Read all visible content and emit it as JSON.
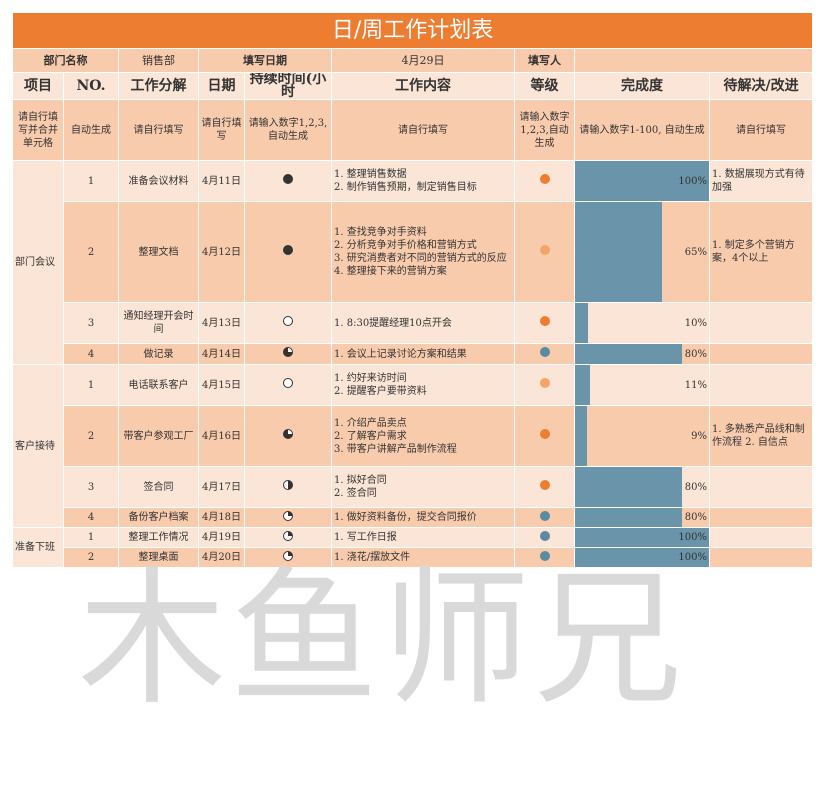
{
  "title": "日/周工作计划表",
  "meta": {
    "dept_label": "部门名称",
    "dept_value": "销售部",
    "date_label": "填写日期",
    "date_value": "4月29日",
    "filler_label": "填写人",
    "filler_value": ""
  },
  "headers": [
    "项目",
    "NO.",
    "工作分解",
    "日期",
    "持续时间(小时",
    "工作内容",
    "等级",
    "完成度",
    "待解决/改进"
  ],
  "instructions": [
    "请自行填写并合并单元格",
    "自动生成",
    "请自行填写",
    "请自行填写",
    "请输入数字1,2,3, 自动生成",
    "请自行填写",
    "请输入数字1,2,3,自动生成",
    "请输入数字1-100, 自动生成",
    "请自行填写"
  ],
  "sections": [
    "部门会议",
    "客户接待",
    "准备下班"
  ],
  "rows": [
    {
      "no": "1",
      "task": "准备会议材料",
      "date": "4月11日",
      "duration": "full",
      "content": [
        "1. 整理销售数据",
        "2. 制作销售预期，制定销售目标"
      ],
      "grade": "orange",
      "progress": 100,
      "pct": "100%",
      "todo": "1. 数据展现方式有待加强"
    },
    {
      "no": "2",
      "task": "整理文档",
      "date": "4月12日",
      "duration": "full",
      "content": [
        "1. 查找竞争对手资料",
        "2. 分析竞争对手价格和营销方式",
        "3. 研究消费者对不同的营销方式的反应",
        "4. 整理接下来的营销方案"
      ],
      "grade": "orange-light",
      "progress": 65,
      "pct": "65%",
      "todo": "1. 制定多个营销方案，4个以上"
    },
    {
      "no": "3",
      "task": "通知经理开会时间",
      "date": "4月13日",
      "duration": "empty",
      "content": [
        "1. 8:30提醒经理10点开会"
      ],
      "grade": "orange",
      "progress": 10,
      "pct": "10%",
      "todo": ""
    },
    {
      "no": "4",
      "task": "做记录",
      "date": "4月14日",
      "duration": "three-quarter",
      "content": [
        "1. 会议上记录讨论方案和结果"
      ],
      "grade": "blue",
      "progress": 80,
      "pct": "80%",
      "todo": ""
    },
    {
      "no": "1",
      "task": "电话联系客户",
      "date": "4月15日",
      "duration": "empty",
      "content": [
        "1. 约好来访时间",
        "2. 提醒客户要带资料"
      ],
      "grade": "orange-light",
      "progress": 11,
      "pct": "11%",
      "todo": ""
    },
    {
      "no": "2",
      "task": "带客户参观工厂",
      "date": "4月16日",
      "duration": "three-quarter",
      "content": [
        "1. 介绍产品卖点",
        "2. 了解客户需求",
        "3. 带客户讲解产品制作流程"
      ],
      "grade": "orange",
      "progress": 9,
      "pct": "9%",
      "todo": "1. 多熟悉产品线和制作流程 2. 自信点"
    },
    {
      "no": "3",
      "task": "签合同",
      "date": "4月17日",
      "duration": "half",
      "content": [
        "1. 拟好合同",
        "2. 签合同"
      ],
      "grade": "orange",
      "progress": 80,
      "pct": "80%",
      "todo": ""
    },
    {
      "no": "4",
      "task": "备份客户档案",
      "date": "4月18日",
      "duration": "quarter",
      "content": [
        "1. 做好资料备份，提交合同报价"
      ],
      "grade": "blue",
      "progress": 80,
      "pct": "80%",
      "todo": ""
    },
    {
      "no": "1",
      "task": "整理工作情况",
      "date": "4月19日",
      "duration": "quarter",
      "content": [
        "1. 写工作日报"
      ],
      "grade": "blue",
      "progress": 100,
      "pct": "100%",
      "todo": ""
    },
    {
      "no": "2",
      "task": "整理桌面",
      "date": "4月20日",
      "duration": "quarter",
      "content": [
        "1. 浇花/摆放文件"
      ],
      "grade": "blue",
      "progress": 100,
      "pct": "100%",
      "todo": ""
    }
  ],
  "colors": {
    "accent": "#ed7d31",
    "dark_row": "#f8cbad",
    "light_row": "#fbe5d6",
    "bar": "#6a94a9"
  },
  "watermark": "木鱼师兄"
}
